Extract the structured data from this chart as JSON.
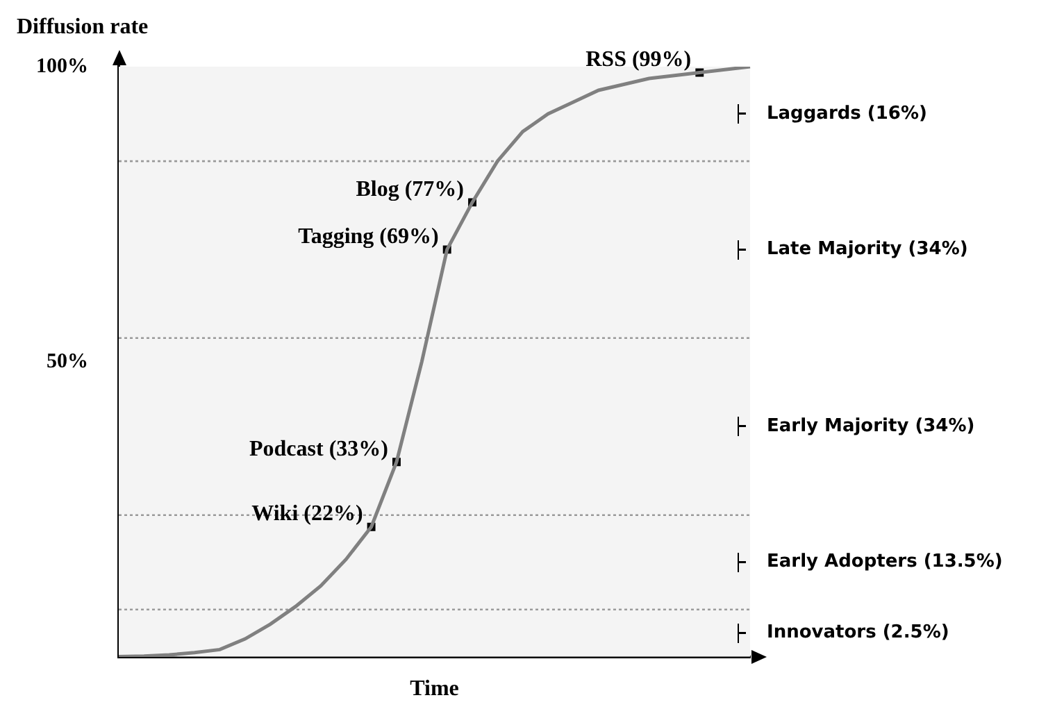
{
  "chart_data": {
    "type": "line",
    "xlabel": "Time",
    "ylabel": "Diffusion rate",
    "categories": [
      null,
      null,
      null,
      null,
      null,
      null,
      null,
      null,
      null,
      null,
      null,
      null,
      null,
      null,
      null,
      null,
      null,
      null,
      null,
      null,
      null,
      null,
      null,
      null,
      null,
      null
    ],
    "ylim": [
      0,
      100
    ],
    "yticks": [
      {
        "value": 50,
        "label": "50%"
      },
      {
        "value": 100,
        "label": "100%"
      }
    ],
    "tick_labels": "y",
    "grid": false,
    "legend": false,
    "series": [
      {
        "type": "line",
        "color": "#808080",
        "marker": "none",
        "values": [
          0,
          0.1,
          0.3,
          0.7,
          1.2,
          3,
          5.5,
          8.5,
          12,
          16.5,
          22,
          33,
          50,
          69,
          77,
          84,
          89,
          92,
          94,
          96,
          97,
          98,
          98.5,
          99,
          99.5,
          100
        ]
      },
      {
        "type": "scatter",
        "color": "#000000",
        "marker": "square",
        "values": [
          null,
          null,
          null,
          null,
          null,
          null,
          null,
          null,
          null,
          null,
          22,
          33,
          null,
          69,
          77,
          null,
          null,
          null,
          null,
          null,
          null,
          null,
          null,
          99,
          null,
          null
        ],
        "value_labels": [
          null,
          null,
          null,
          null,
          null,
          null,
          null,
          null,
          null,
          null,
          "Wiki (22%)",
          "Podcast (33%)",
          null,
          "Tagging (69%)",
          "Blog (77%)",
          null,
          null,
          null,
          null,
          null,
          null,
          null,
          null,
          "RSS (99%)",
          null,
          null
        ]
      }
    ],
    "bands": [
      {
        "axis": "y",
        "from": 0,
        "to": 8,
        "label": "Innovators (2.5%)",
        "color": "#f4f4f4"
      },
      {
        "axis": "y",
        "from": 8,
        "to": 24,
        "label": "Early Adopters (13.5%)",
        "color": "#f4f4f4"
      },
      {
        "axis": "y",
        "from": 24,
        "to": 54,
        "label": "Early Majority (34%)",
        "color": "#f4f4f4"
      },
      {
        "axis": "y",
        "from": 54,
        "to": 84,
        "label": "Late Majority (34%)",
        "color": "#f4f4f4"
      },
      {
        "axis": "y",
        "from": 84,
        "to": 100,
        "label": "Laggards (16%)",
        "color": "#f4f4f4"
      }
    ]
  }
}
